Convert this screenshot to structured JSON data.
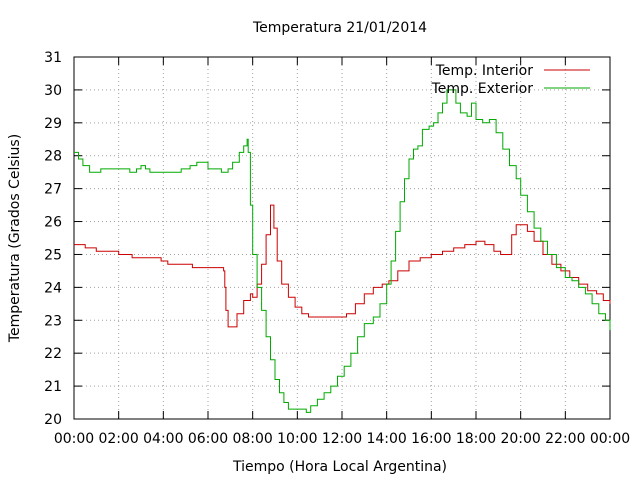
{
  "chart_data": {
    "type": "line",
    "title": "Temperatura 21/01/2014",
    "xlabel": "Tiempo (Hora Local Argentina)",
    "ylabel": "Temperatura (Grados Celsius)",
    "xlim": [
      0,
      24
    ],
    "ylim": [
      20,
      31
    ],
    "grid": true,
    "legend_position": "top-right",
    "x_ticks": [
      {
        "v": 0,
        "label": "00:00"
      },
      {
        "v": 2,
        "label": "02:00"
      },
      {
        "v": 4,
        "label": "04:00"
      },
      {
        "v": 6,
        "label": "06:00"
      },
      {
        "v": 8,
        "label": "08:00"
      },
      {
        "v": 10,
        "label": "10:00"
      },
      {
        "v": 12,
        "label": "12:00"
      },
      {
        "v": 14,
        "label": "14:00"
      },
      {
        "v": 16,
        "label": "16:00"
      },
      {
        "v": 18,
        "label": "18:00"
      },
      {
        "v": 20,
        "label": "20:00"
      },
      {
        "v": 22,
        "label": "22:00"
      },
      {
        "v": 24,
        "label": "00:00"
      }
    ],
    "y_ticks": [
      {
        "v": 20,
        "label": "20"
      },
      {
        "v": 21,
        "label": "21"
      },
      {
        "v": 22,
        "label": "22"
      },
      {
        "v": 23,
        "label": "23"
      },
      {
        "v": 24,
        "label": "24"
      },
      {
        "v": 25,
        "label": "25"
      },
      {
        "v": 26,
        "label": "26"
      },
      {
        "v": 27,
        "label": "27"
      },
      {
        "v": 28,
        "label": "28"
      },
      {
        "v": 29,
        "label": "29"
      },
      {
        "v": 30,
        "label": "30"
      },
      {
        "v": 31,
        "label": "31"
      }
    ],
    "series": [
      {
        "name": "Temp. Interior",
        "color": "#cc0000",
        "points": [
          [
            0,
            25.3
          ],
          [
            0.5,
            25.2
          ],
          [
            1,
            25.1
          ],
          [
            1.5,
            25.1
          ],
          [
            2,
            25.0
          ],
          [
            2.4,
            25.0
          ],
          [
            2.6,
            24.9
          ],
          [
            3,
            24.9
          ],
          [
            3.5,
            24.9
          ],
          [
            3.9,
            24.8
          ],
          [
            4.2,
            24.7
          ],
          [
            5,
            24.7
          ],
          [
            5.3,
            24.6
          ],
          [
            6,
            24.6
          ],
          [
            6.6,
            24.6
          ],
          [
            6.7,
            24.5
          ],
          [
            6.75,
            24.0
          ],
          [
            6.8,
            23.3
          ],
          [
            6.9,
            22.8
          ],
          [
            7.1,
            22.8
          ],
          [
            7.3,
            23.2
          ],
          [
            7.6,
            23.6
          ],
          [
            7.9,
            23.8
          ],
          [
            8.0,
            23.7
          ],
          [
            8.2,
            24.1
          ],
          [
            8.4,
            24.7
          ],
          [
            8.6,
            25.6
          ],
          [
            8.8,
            26.5
          ],
          [
            8.95,
            25.8
          ],
          [
            9.1,
            24.8
          ],
          [
            9.3,
            24.1
          ],
          [
            9.6,
            23.7
          ],
          [
            9.9,
            23.4
          ],
          [
            10.2,
            23.2
          ],
          [
            10.5,
            23.1
          ],
          [
            11,
            23.1
          ],
          [
            11.5,
            23.1
          ],
          [
            12,
            23.1
          ],
          [
            12.2,
            23.2
          ],
          [
            12.6,
            23.5
          ],
          [
            13,
            23.8
          ],
          [
            13.4,
            24.0
          ],
          [
            13.8,
            24.1
          ],
          [
            14.1,
            24.2
          ],
          [
            14.5,
            24.5
          ],
          [
            15,
            24.8
          ],
          [
            15.5,
            24.9
          ],
          [
            16,
            25.0
          ],
          [
            16.5,
            25.1
          ],
          [
            17,
            25.2
          ],
          [
            17.5,
            25.3
          ],
          [
            18,
            25.4
          ],
          [
            18.4,
            25.3
          ],
          [
            18.8,
            25.1
          ],
          [
            19.1,
            25.0
          ],
          [
            19.4,
            25.0
          ],
          [
            19.6,
            25.6
          ],
          [
            19.8,
            25.9
          ],
          [
            20.0,
            25.9
          ],
          [
            20.3,
            25.7
          ],
          [
            20.6,
            25.4
          ],
          [
            21,
            25.0
          ],
          [
            21.4,
            24.7
          ],
          [
            21.8,
            24.5
          ],
          [
            22.2,
            24.3
          ],
          [
            22.6,
            24.1
          ],
          [
            23,
            23.9
          ],
          [
            23.4,
            23.8
          ],
          [
            23.7,
            23.6
          ],
          [
            24,
            23.5
          ]
        ]
      },
      {
        "name": "Temp. Exterior",
        "color": "#00aa00",
        "points": [
          [
            0,
            28.1
          ],
          [
            0.2,
            27.9
          ],
          [
            0.4,
            27.7
          ],
          [
            0.7,
            27.5
          ],
          [
            1,
            27.5
          ],
          [
            1.2,
            27.6
          ],
          [
            1.5,
            27.6
          ],
          [
            2,
            27.6
          ],
          [
            2.3,
            27.6
          ],
          [
            2.5,
            27.5
          ],
          [
            2.8,
            27.6
          ],
          [
            3,
            27.7
          ],
          [
            3.2,
            27.6
          ],
          [
            3.4,
            27.5
          ],
          [
            4,
            27.5
          ],
          [
            4.5,
            27.5
          ],
          [
            4.8,
            27.6
          ],
          [
            5,
            27.6
          ],
          [
            5.2,
            27.7
          ],
          [
            5.5,
            27.8
          ],
          [
            5.8,
            27.8
          ],
          [
            6.0,
            27.6
          ],
          [
            6.3,
            27.6
          ],
          [
            6.6,
            27.5
          ],
          [
            6.9,
            27.6
          ],
          [
            7.1,
            27.8
          ],
          [
            7.4,
            28.1
          ],
          [
            7.6,
            28.3
          ],
          [
            7.75,
            28.5
          ],
          [
            7.8,
            28.1
          ],
          [
            7.9,
            26.5
          ],
          [
            8.0,
            25.0
          ],
          [
            8.2,
            24.0
          ],
          [
            8.4,
            23.3
          ],
          [
            8.6,
            22.5
          ],
          [
            8.8,
            21.8
          ],
          [
            9.0,
            21.2
          ],
          [
            9.2,
            20.8
          ],
          [
            9.4,
            20.5
          ],
          [
            9.6,
            20.3
          ],
          [
            10.0,
            20.3
          ],
          [
            10.2,
            20.3
          ],
          [
            10.4,
            20.2
          ],
          [
            10.6,
            20.4
          ],
          [
            10.9,
            20.6
          ],
          [
            11.2,
            20.8
          ],
          [
            11.5,
            21.0
          ],
          [
            11.8,
            21.3
          ],
          [
            12.1,
            21.6
          ],
          [
            12.4,
            22.0
          ],
          [
            12.7,
            22.5
          ],
          [
            13.0,
            22.9
          ],
          [
            13.4,
            23.1
          ],
          [
            13.7,
            23.5
          ],
          [
            14.0,
            24.1
          ],
          [
            14.2,
            24.8
          ],
          [
            14.4,
            25.7
          ],
          [
            14.6,
            26.6
          ],
          [
            14.8,
            27.3
          ],
          [
            15.0,
            27.9
          ],
          [
            15.2,
            28.2
          ],
          [
            15.4,
            28.3
          ],
          [
            15.6,
            28.8
          ],
          [
            15.9,
            28.9
          ],
          [
            16.1,
            29.0
          ],
          [
            16.3,
            29.3
          ],
          [
            16.5,
            29.6
          ],
          [
            16.7,
            30.0
          ],
          [
            16.9,
            30.0
          ],
          [
            17.1,
            29.6
          ],
          [
            17.3,
            29.3
          ],
          [
            17.6,
            29.2
          ],
          [
            17.8,
            29.6
          ],
          [
            18.0,
            29.1
          ],
          [
            18.3,
            29.0
          ],
          [
            18.6,
            29.1
          ],
          [
            18.9,
            28.7
          ],
          [
            19.2,
            28.2
          ],
          [
            19.5,
            27.7
          ],
          [
            19.8,
            27.3
          ],
          [
            20.0,
            26.8
          ],
          [
            20.3,
            26.3
          ],
          [
            20.6,
            25.8
          ],
          [
            20.9,
            25.4
          ],
          [
            21.2,
            25.0
          ],
          [
            21.6,
            24.6
          ],
          [
            22.0,
            24.3
          ],
          [
            22.3,
            24.2
          ],
          [
            22.6,
            24.0
          ],
          [
            22.9,
            23.8
          ],
          [
            23.2,
            23.5
          ],
          [
            23.5,
            23.2
          ],
          [
            23.8,
            23.0
          ],
          [
            24,
            22.7
          ]
        ]
      }
    ]
  }
}
